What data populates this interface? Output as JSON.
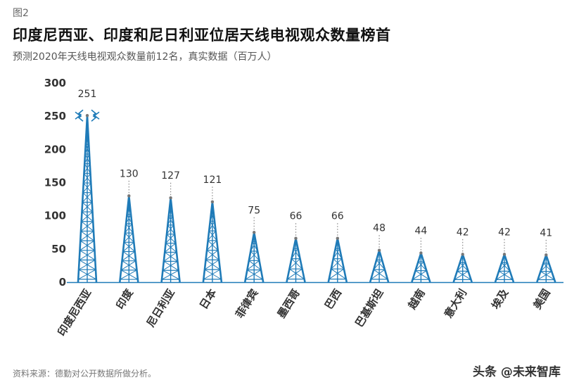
{
  "header": {
    "figure_label": "图2",
    "title": "印度尼西亚、印度和尼日利亚位居天线电视观众数量榜首",
    "subtitle": "预测2020年天线电视观众数量前12名，真实数据（百万人）"
  },
  "footer": {
    "source": "资料来源：德勤对公开数据所做分析。",
    "watermark": "头条 @未来智库"
  },
  "chart_data": {
    "type": "bar",
    "title": "印度尼西亚、印度和尼日利亚位居天线电视观众数量榜首",
    "subtitle": "预测2020年天线电视观众数量前12名，真实数据（百万人）",
    "categories": [
      "印度尼西亚",
      "印度",
      "尼日利亚",
      "日本",
      "菲律宾",
      "墨西哥",
      "巴西",
      "巴基斯坦",
      "越南",
      "意大利",
      "埃及",
      "美国"
    ],
    "values": [
      251,
      130,
      127,
      121,
      75,
      66,
      66,
      48,
      44,
      42,
      42,
      41
    ],
    "yticks": [
      0,
      50,
      100,
      150,
      200,
      250,
      300
    ],
    "ylim": [
      0,
      300
    ],
    "xlabel": "",
    "ylabel": "",
    "color": "#1f7bb8",
    "grid": false,
    "legend": "none"
  }
}
